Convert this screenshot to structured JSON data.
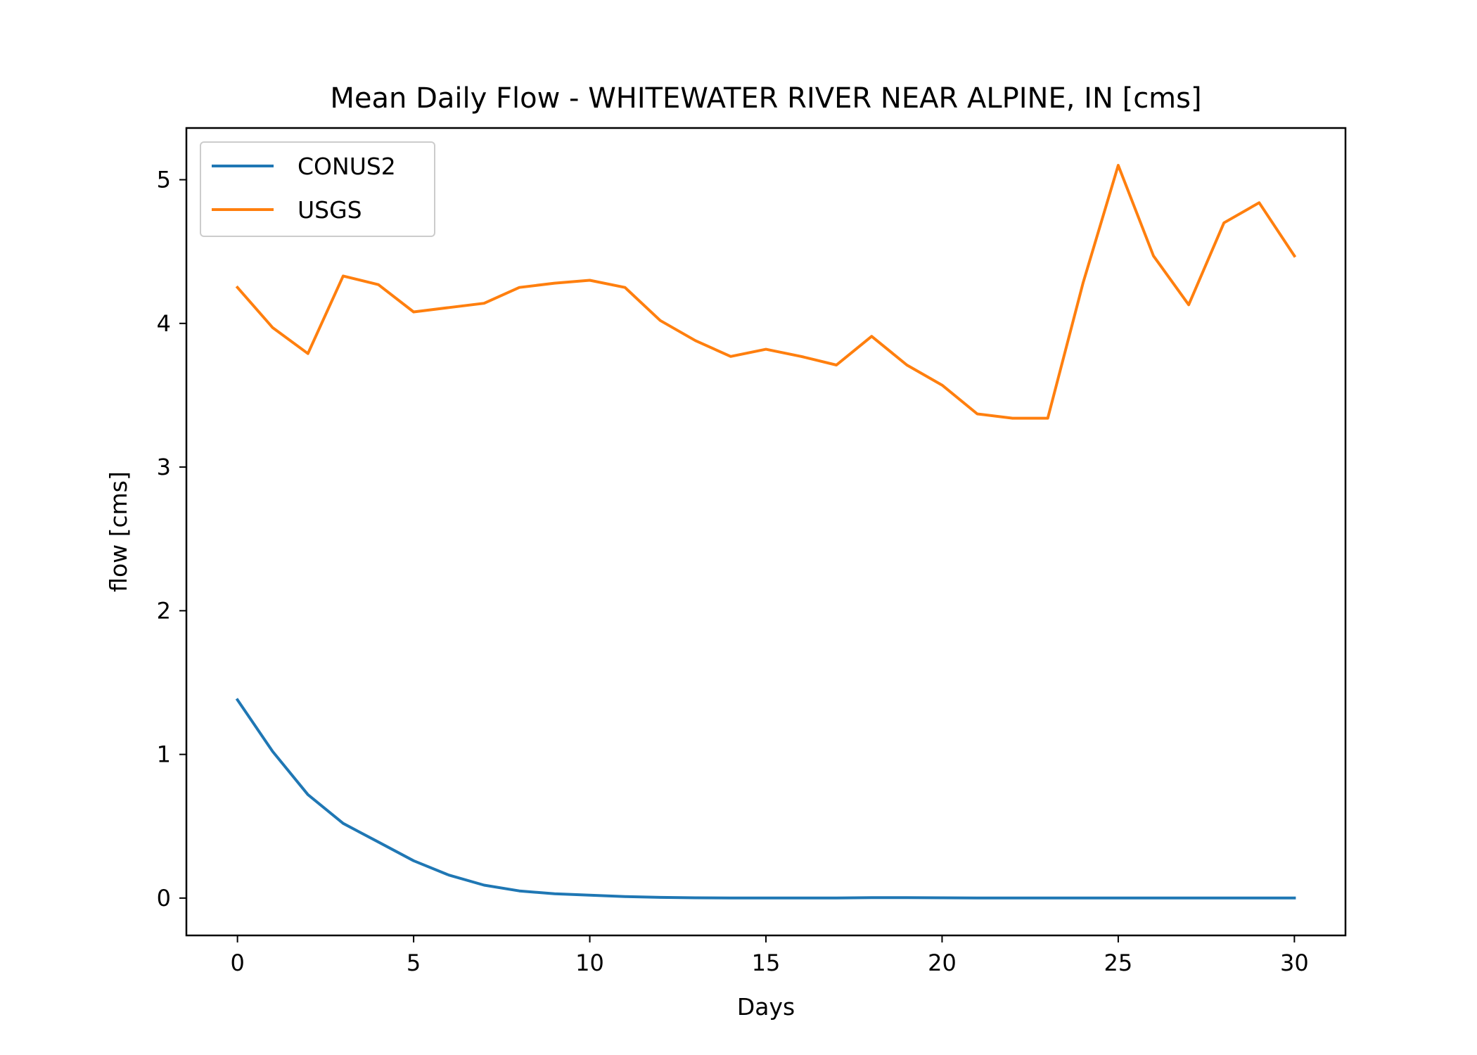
{
  "chart_data": {
    "type": "line",
    "title": "Mean Daily Flow - WHITEWATER RIVER NEAR ALPINE, IN [cms]",
    "xlabel": "Days",
    "ylabel": "flow [cms]",
    "xlim": [
      -1.45,
      31.45
    ],
    "ylim": [
      -0.26,
      5.36
    ],
    "xticks": [
      0,
      5,
      10,
      15,
      20,
      25,
      30
    ],
    "yticks": [
      0,
      1,
      2,
      3,
      4,
      5
    ],
    "legend": {
      "placement": "upper-left"
    },
    "grid": false,
    "x": [
      0,
      1,
      2,
      3,
      4,
      5,
      6,
      7,
      8,
      9,
      10,
      11,
      12,
      13,
      14,
      15,
      16,
      17,
      18,
      19,
      20,
      21,
      22,
      23,
      24,
      25,
      26,
      27,
      28,
      29,
      30
    ],
    "series": [
      {
        "name": "CONUS2",
        "color": "#1f77b4",
        "values": [
          1.38,
          1.02,
          0.72,
          0.52,
          0.39,
          0.26,
          0.16,
          0.09,
          0.05,
          0.03,
          0.02,
          0.01,
          0.005,
          0.002,
          0.001,
          0.001,
          0.001,
          0.001,
          0.003,
          0.003,
          0.002,
          0.001,
          0.001,
          0.001,
          0.001,
          0.001,
          0.001,
          0.001,
          0.001,
          0.001,
          0.001
        ]
      },
      {
        "name": "USGS",
        "color": "#ff7f0e",
        "values": [
          4.25,
          3.97,
          3.79,
          4.33,
          4.27,
          4.08,
          4.11,
          4.14,
          4.25,
          4.28,
          4.3,
          4.25,
          4.02,
          3.88,
          3.77,
          3.82,
          3.77,
          3.71,
          3.91,
          3.71,
          3.57,
          3.37,
          3.34,
          3.34,
          4.28,
          5.1,
          4.47,
          4.13,
          4.7,
          4.84,
          4.47
        ]
      }
    ]
  }
}
